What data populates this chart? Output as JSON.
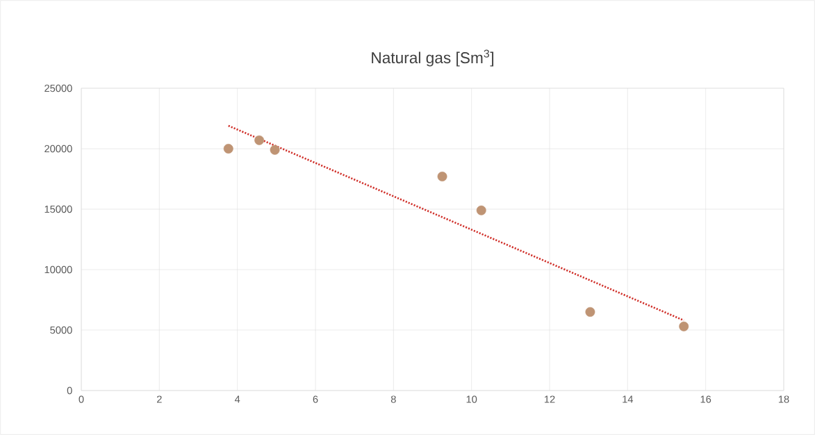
{
  "chart_data": {
    "type": "scatter",
    "title": "Natural gas [Sm$^{3}$]",
    "xlim": [
      0,
      18
    ],
    "xticks": [
      0,
      2,
      4,
      6,
      8,
      10,
      12,
      14,
      16,
      18
    ],
    "ylim": [
      0,
      25000
    ],
    "yticks": [
      0,
      5000,
      10000,
      15000,
      20000,
      25000
    ],
    "grid": true,
    "marker": "circle",
    "series": [
      {
        "color": "#bf9474",
        "x": [
          3.77,
          4.56,
          4.96,
          9.25,
          10.25,
          13.04,
          15.44
        ],
        "values": [
          20000,
          20700,
          19900,
          17700,
          14900,
          6500,
          5300
        ]
      },
      {
        "type": "line",
        "color": "#d0302a",
        "line_style": "dotted",
        "marker": "none",
        "x": [
          3.77,
          15.44
        ],
        "values": [
          21900,
          5800
        ]
      }
    ]
  }
}
